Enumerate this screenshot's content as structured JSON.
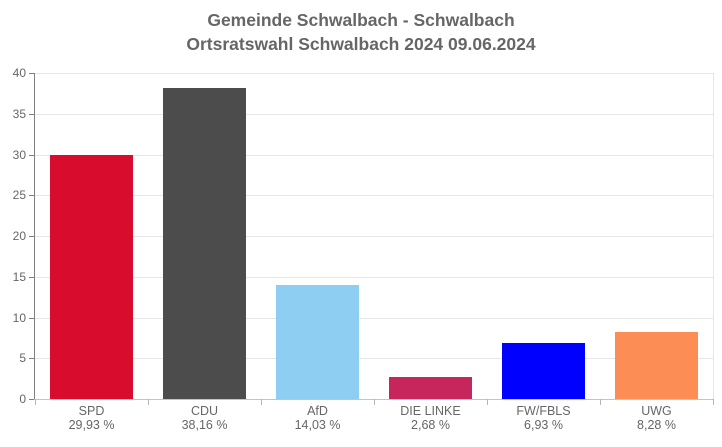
{
  "title": {
    "line1": "Gemeinde Schwalbach - Schwalbach",
    "line2": "Ortsratswahl Schwalbach 2024 09.06.2024"
  },
  "chart_data": {
    "type": "bar",
    "title": "Gemeinde Schwalbach - Schwalbach Ortsratswahl Schwalbach 2024 09.06.2024",
    "categories": [
      "SPD",
      "CDU",
      "AfD",
      "DIE LINKE",
      "FW/FBLS",
      "UWG"
    ],
    "values": [
      29.93,
      38.16,
      14.03,
      2.68,
      6.93,
      8.28
    ],
    "value_labels": [
      "29,93 %",
      "38,16 %",
      "14,03 %",
      "2,68 %",
      "6,93 %",
      "8,28 %"
    ],
    "bar_colors": [
      "#D80C2C",
      "#4C4C4C",
      "#8FCEF3",
      "#C7265D",
      "#0000FF",
      "#FB8D55"
    ],
    "xlabel": "",
    "ylabel": "",
    "ylim": [
      0,
      40
    ],
    "yticks": [
      0,
      5,
      10,
      15,
      20,
      25,
      30,
      35,
      40
    ],
    "grid": true,
    "legend": "none"
  },
  "colors": {
    "title_text": "#666666",
    "axis_label_text": "#666666",
    "gridline": "#E6E6E6",
    "y_axis_line": "#808080",
    "x_axis_line": "#C4C4C4",
    "background": "#FFFFFF"
  }
}
